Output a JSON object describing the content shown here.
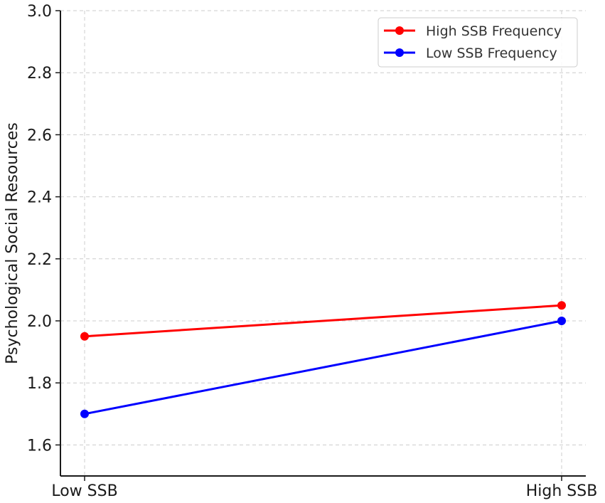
{
  "chart_data": {
    "type": "line",
    "title": "",
    "xlabel": "",
    "ylabel": "Psychological Social Resources",
    "categories": [
      "Low SSB",
      "High SSB"
    ],
    "series": [
      {
        "name": "High SSB Frequency",
        "color": "#ff0000",
        "values": [
          1.95,
          2.05
        ]
      },
      {
        "name": "Low SSB Frequency",
        "color": "#0000ff",
        "values": [
          1.7,
          2.0
        ]
      }
    ],
    "ylim": [
      1.5,
      3.0
    ],
    "yticks": [
      1.6,
      1.8,
      2.0,
      2.2,
      2.4,
      2.6,
      2.8,
      3.0
    ],
    "ytick_labels": [
      "1.6",
      "1.8",
      "2.0",
      "2.2",
      "2.4",
      "2.6",
      "2.8",
      "3.0"
    ],
    "grid": true,
    "legend_position": "upper right",
    "markers": "circle"
  },
  "legend": {
    "items": [
      {
        "label": "High SSB Frequency",
        "color": "#ff0000"
      },
      {
        "label": "Low SSB Frequency",
        "color": "#0000ff"
      }
    ]
  },
  "axes": {
    "ylabel": "Psychological Social Resources",
    "xtick_labels": [
      "Low SSB",
      "High SSB"
    ]
  }
}
